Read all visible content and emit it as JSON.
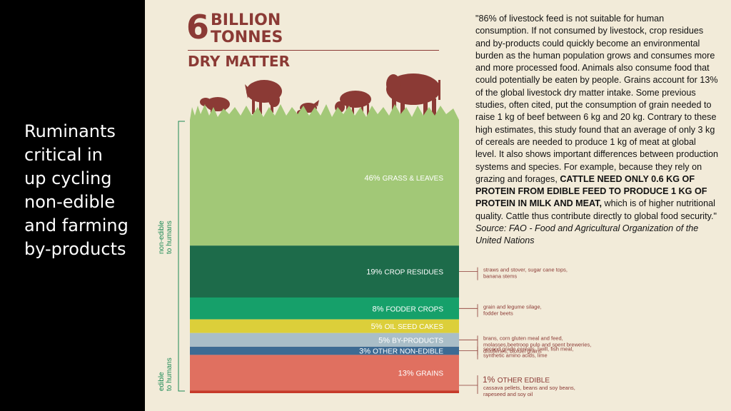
{
  "slide_title": "Ruminants\ncritical in\nup cycling\nnon-edible\nand farming\nby-products",
  "infographic": {
    "big_number": "6",
    "billion": "BILLION",
    "tonnes": "TONNES",
    "dry_matter": "DRY MATTER",
    "side_label_nonedible": [
      "non-edible",
      "to humans"
    ],
    "side_label_edible": [
      "edible",
      "to humans"
    ]
  },
  "quote": {
    "text_1": "\"86% of livestock feed is not suitable for human consumption. If not consumed by livestock, crop residues and by-products could quickly become an environmental burden as the human population grows and consumes more and more processed food. Animals also consume food that could potentially be eaten by people. Grains account for 13% of the global livestock dry matter intake. Some previous studies, often cited, put the consumption of grain needed to raise 1 kg of beef between 6 kg and 20 kg. Contrary to these high estimates, this study found that an average of only 3 kg of cereals are needed to produce 1 kg of meat at global level. It also shows important differences between production systems and species. For example, because they rely on grazing and forages,",
    "bold": "CATTLE NEED ONLY 0.6 KG OF PROTEIN FROM EDIBLE FEED TO PRODUCE 1 KG OF PROTEIN IN MILK AND MEAT,",
    "text_2": " which is of higher nutritional quality. Cattle thus contribute directly to global food security.\" ",
    "source": "Source: FAO - Food and Agricultural Organization of the United Nations"
  },
  "colors": {
    "brand": "#8b3a35",
    "grass": "#a2c877",
    "crop_residues": "#1d6b4a",
    "fodder": "#16a06a",
    "oil": "#dccf3a",
    "byproducts": "#a9bec8",
    "other_nonedible": "#3d6b93",
    "grains": "#e07060",
    "other_edible": "#c63a2a"
  },
  "chart_data": {
    "type": "stacked-bar",
    "title": "6 BILLION TONNES DRY MATTER",
    "segments": [
      {
        "percent": 46,
        "pct_label": "46%",
        "name": "GRASS & LEAVES",
        "group": "non-edible",
        "note": []
      },
      {
        "percent": 19,
        "pct_label": "19%",
        "name": "CROP RESIDUES",
        "group": "non-edible",
        "note": [
          "straws and stover, sugar cane tops,",
          "banana stems"
        ]
      },
      {
        "percent": 8,
        "pct_label": "8%",
        "name": "FODDER CROPS",
        "group": "non-edible",
        "note": [
          "grain and legume silage,",
          "fodder beets"
        ]
      },
      {
        "percent": 5,
        "pct_label": "5%",
        "name": "OIL SEED CAKES",
        "group": "non-edible",
        "note": []
      },
      {
        "percent": 5,
        "pct_label": "5%",
        "name": "BY-PRODUCTS",
        "group": "non-edible",
        "note": [
          "brans, corn gluten meal and feed,",
          "molasses,beetroop pulp and spent breweries,",
          "distilleries, biofuel grains"
        ]
      },
      {
        "percent": 3,
        "pct_label": "3%",
        "name": "OTHER NON-EDIBLE",
        "group": "non-edible",
        "note": [
          "second grade cereals, swill, fish meal,",
          "synthetic amino acids, lime"
        ]
      },
      {
        "percent": 13,
        "pct_label": "13%",
        "name": "GRAINS",
        "group": "edible",
        "note": []
      },
      {
        "percent": 1,
        "pct_label": "1%",
        "name": "OTHER EDIBLE",
        "group": "edible",
        "note": [
          "cassava pellets, beans and soy beans,",
          "rapeseed and soy oil"
        ]
      }
    ]
  }
}
